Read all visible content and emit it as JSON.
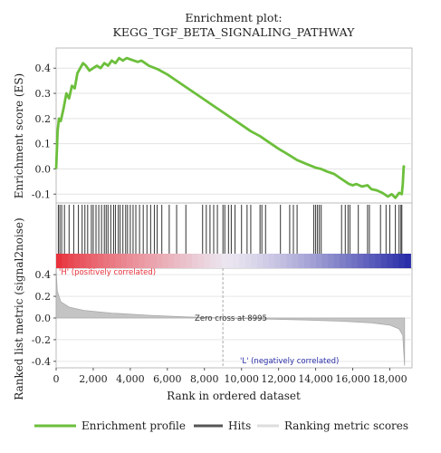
{
  "chart_data": {
    "type": "line",
    "title_line1": "Enrichment plot:",
    "title_line2": "KEGG_TGF_BETA_SIGNALING_PATHWAY",
    "xlabel": "Rank in ordered dataset",
    "xlim": [
      0,
      19200
    ],
    "x_ticks": [
      0,
      2000,
      4000,
      6000,
      8000,
      10000,
      12000,
      14000,
      16000,
      18000
    ],
    "x_tick_labels": [
      "0",
      "2,000",
      "4,000",
      "6,000",
      "8,000",
      "10,000",
      "12,000",
      "14,000",
      "16,000",
      "18,000"
    ],
    "top_panel": {
      "ylabel": "Enrichment score (ES)",
      "ylim": [
        -0.135,
        0.48
      ],
      "y_ticks": [
        -0.1,
        0.0,
        0.1,
        0.2,
        0.3,
        0.4
      ],
      "y_tick_labels": [
        "-0.1",
        "0.0",
        "0.1",
        "0.2",
        "0.3",
        "0.4"
      ],
      "series": [
        {
          "name": "Enrichment profile",
          "color": "#6cbf3b",
          "x": [
            0,
            80,
            150,
            250,
            400,
            550,
            700,
            850,
            1000,
            1150,
            1300,
            1450,
            1600,
            1800,
            2000,
            2200,
            2400,
            2600,
            2800,
            3000,
            3200,
            3400,
            3600,
            3800,
            4000,
            4200,
            4400,
            4600,
            4800,
            5000,
            5500,
            6000,
            6500,
            7000,
            7500,
            8000,
            8500,
            9000,
            9500,
            10000,
            10500,
            11000,
            11500,
            12000,
            12500,
            13000,
            13500,
            14000,
            14300,
            14600,
            15000,
            15400,
            15800,
            16000,
            16200,
            16500,
            16800,
            17000,
            17300,
            17600,
            17900,
            18100,
            18300,
            18500,
            18650,
            18700,
            18750,
            18800
          ],
          "y": [
            0.0,
            0.15,
            0.2,
            0.19,
            0.24,
            0.3,
            0.28,
            0.33,
            0.32,
            0.38,
            0.4,
            0.42,
            0.41,
            0.39,
            0.4,
            0.41,
            0.4,
            0.42,
            0.41,
            0.43,
            0.42,
            0.44,
            0.43,
            0.44,
            0.435,
            0.43,
            0.425,
            0.43,
            0.42,
            0.41,
            0.395,
            0.375,
            0.35,
            0.325,
            0.3,
            0.275,
            0.25,
            0.225,
            0.2,
            0.175,
            0.15,
            0.13,
            0.105,
            0.08,
            0.058,
            0.035,
            0.02,
            0.005,
            0.0,
            -0.01,
            -0.02,
            -0.04,
            -0.06,
            -0.065,
            -0.06,
            -0.07,
            -0.065,
            -0.08,
            -0.085,
            -0.095,
            -0.11,
            -0.1,
            -0.115,
            -0.095,
            -0.1,
            -0.06,
            0.01,
            0.005
          ]
        }
      ]
    },
    "hits_panel": {
      "legend": "Hits",
      "color": "#444444",
      "hit_positions": [
        120,
        200,
        300,
        450,
        700,
        950,
        1200,
        1400,
        1550,
        1700,
        1900,
        2000,
        2150,
        2300,
        2450,
        2600,
        2700,
        2800,
        2950,
        3100,
        3200,
        3350,
        3450,
        3600,
        3750,
        3850,
        4000,
        4150,
        4300,
        4500,
        4700,
        4900,
        5100,
        5300,
        5450,
        5700,
        6100,
        6500,
        7000,
        7900,
        8100,
        8300,
        8500,
        8700,
        9000,
        9100,
        9300,
        9450,
        9650,
        10000,
        10300,
        10500,
        11000,
        11100,
        11300,
        12100,
        12600,
        12800,
        13000,
        13900,
        14000,
        14100,
        14200,
        14300,
        15400,
        15600,
        15750,
        15850,
        16300,
        16800,
        16900,
        17500,
        17800,
        18000,
        18300,
        18500,
        18600,
        18650
      ]
    },
    "ranked_panel": {
      "ylabel": "Ranked list metric (signal2noise)",
      "legend": "Ranking metric scores",
      "ylim": [
        -0.46,
        0.46
      ],
      "y_ticks": [
        -0.4,
        -0.2,
        0.0,
        0.2,
        0.4
      ],
      "y_tick_labels": [
        "-0.4",
        "-0.2",
        "0.0",
        "0.2",
        "0.4"
      ],
      "zero_cross": 8995,
      "zero_cross_label": "Zero cross at 8995",
      "positive_label": "'H' (positively correlated)",
      "negative_label": "'L' (negatively correlated)",
      "metric_profile": [
        {
          "x": 0,
          "y": 0.46
        },
        {
          "x": 60,
          "y": 0.25
        },
        {
          "x": 250,
          "y": 0.15
        },
        {
          "x": 700,
          "y": 0.1
        },
        {
          "x": 1500,
          "y": 0.07
        },
        {
          "x": 3000,
          "y": 0.045
        },
        {
          "x": 5000,
          "y": 0.025
        },
        {
          "x": 7000,
          "y": 0.01
        },
        {
          "x": 8995,
          "y": 0.0
        },
        {
          "x": 11000,
          "y": -0.008
        },
        {
          "x": 13500,
          "y": -0.018
        },
        {
          "x": 15500,
          "y": -0.03
        },
        {
          "x": 17000,
          "y": -0.045
        },
        {
          "x": 18000,
          "y": -0.065
        },
        {
          "x": 18500,
          "y": -0.1
        },
        {
          "x": 18700,
          "y": -0.16
        },
        {
          "x": 18800,
          "y": -0.44
        }
      ],
      "colors": {
        "positive": "#e8323c",
        "negative": "#2a2ea8",
        "fill": "#c4c4c4"
      }
    },
    "legend": [
      {
        "label": "Enrichment profile",
        "color": "#6cbf3b"
      },
      {
        "label": "Hits",
        "color": "#555555"
      },
      {
        "label": "Ranking metric scores",
        "color": "#dddddd"
      }
    ]
  }
}
